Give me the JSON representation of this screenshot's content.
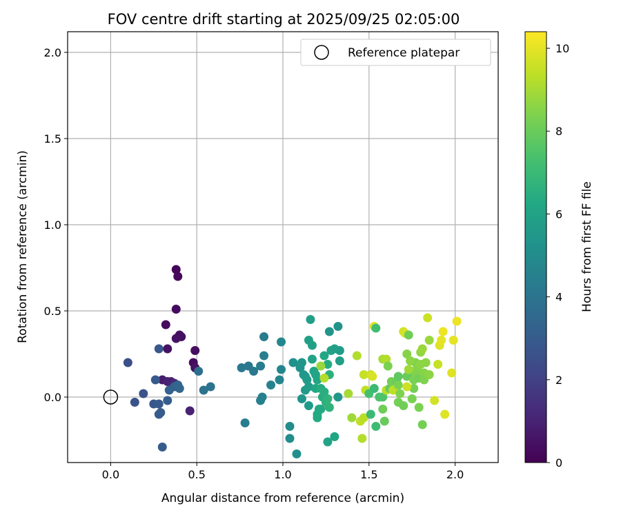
{
  "chart_data": {
    "type": "scatter",
    "title": "FOV centre drift starting at 2025/09/25 02:05:00",
    "xlabel": "Angular distance from reference (arcmin)",
    "ylabel": "Rotation from reference (arcmin)",
    "xlim": [
      -0.25,
      2.25
    ],
    "ylim": [
      -0.38,
      2.12
    ],
    "xticks": [
      0.0,
      0.5,
      1.0,
      1.5,
      2.0
    ],
    "xtick_labels": [
      "0.0",
      "0.5",
      "1.0",
      "1.5",
      "2.0"
    ],
    "yticks": [
      0.0,
      0.5,
      1.0,
      1.5,
      2.0
    ],
    "ytick_labels": [
      "0.0",
      "0.5",
      "1.0",
      "1.5",
      "2.0"
    ],
    "grid": true,
    "legend": {
      "position": "top-right",
      "label": "Reference platepar"
    },
    "reference_point": {
      "x": 0.0,
      "y": 0.0
    },
    "colorbar": {
      "label": "Hours from first FF file",
      "colormap": "viridis",
      "range": [
        0,
        10.4
      ],
      "ticks": [
        0,
        2,
        4,
        6,
        8,
        10
      ],
      "tick_labels": [
        "0",
        "2",
        "4",
        "6",
        "8",
        "10"
      ]
    },
    "points": [
      [
        0.38,
        0.74,
        0.1
      ],
      [
        0.39,
        0.7,
        0.2
      ],
      [
        0.38,
        0.51,
        0.3
      ],
      [
        0.32,
        0.42,
        0.3
      ],
      [
        0.4,
        0.36,
        0.4
      ],
      [
        0.41,
        0.35,
        0.4
      ],
      [
        0.38,
        0.34,
        0.5
      ],
      [
        0.33,
        0.28,
        0.5
      ],
      [
        0.49,
        0.27,
        0.4
      ],
      [
        0.48,
        0.2,
        0.3
      ],
      [
        0.49,
        0.17,
        0.5
      ],
      [
        0.3,
        0.1,
        0.8
      ],
      [
        0.33,
        0.09,
        1.0
      ],
      [
        0.35,
        0.09,
        1.0
      ],
      [
        0.37,
        0.08,
        1.2
      ],
      [
        0.46,
        -0.08,
        1.0
      ],
      [
        0.28,
        0.28,
        2.8
      ],
      [
        0.1,
        0.2,
        2.5
      ],
      [
        0.26,
        0.1,
        2.9
      ],
      [
        0.14,
        -0.03,
        2.7
      ],
      [
        0.19,
        0.02,
        2.6
      ],
      [
        0.25,
        -0.04,
        2.8
      ],
      [
        0.28,
        -0.04,
        2.9
      ],
      [
        0.28,
        -0.1,
        3.0
      ],
      [
        0.29,
        -0.09,
        3.0
      ],
      [
        0.33,
        -0.02,
        3.1
      ],
      [
        0.34,
        0.04,
        3.2
      ],
      [
        0.37,
        0.06,
        3.3
      ],
      [
        0.39,
        0.07,
        3.4
      ],
      [
        0.4,
        0.05,
        3.4
      ],
      [
        0.3,
        -0.29,
        3.0
      ],
      [
        0.51,
        0.15,
        3.8
      ],
      [
        0.54,
        0.04,
        3.9
      ],
      [
        0.58,
        0.06,
        4.0
      ],
      [
        0.76,
        0.17,
        4.1
      ],
      [
        0.8,
        0.18,
        4.1
      ],
      [
        0.83,
        0.15,
        4.2
      ],
      [
        0.87,
        0.18,
        4.3
      ],
      [
        0.89,
        0.35,
        4.3
      ],
      [
        0.89,
        0.24,
        4.4
      ],
      [
        0.78,
        -0.15,
        4.4
      ],
      [
        0.87,
        -0.02,
        4.5
      ],
      [
        0.88,
        0.0,
        4.5
      ],
      [
        0.93,
        0.07,
        4.6
      ],
      [
        0.98,
        0.1,
        4.7
      ],
      [
        0.99,
        0.16,
        4.7
      ],
      [
        0.99,
        0.32,
        4.8
      ],
      [
        1.04,
        -0.17,
        5.0
      ],
      [
        1.04,
        -0.24,
        5.0
      ],
      [
        1.08,
        -0.33,
        5.1
      ],
      [
        1.06,
        0.2,
        5.2
      ],
      [
        1.1,
        0.17,
        5.3
      ],
      [
        1.11,
        0.2,
        5.4
      ],
      [
        1.12,
        0.13,
        5.5
      ],
      [
        1.13,
        0.12,
        5.5
      ],
      [
        1.14,
        0.1,
        5.6
      ],
      [
        1.11,
        -0.01,
        5.4
      ],
      [
        1.13,
        0.04,
        5.6
      ],
      [
        1.15,
        0.06,
        5.7
      ],
      [
        1.15,
        -0.05,
        5.6
      ],
      [
        1.16,
        0.45,
        5.8
      ],
      [
        1.15,
        0.33,
        5.9
      ],
      [
        1.17,
        0.3,
        5.9
      ],
      [
        1.17,
        0.22,
        6.0
      ],
      [
        1.18,
        0.15,
        6.0
      ],
      [
        1.19,
        0.13,
        6.1
      ],
      [
        1.2,
        0.1,
        6.1
      ],
      [
        1.19,
        0.05,
        6.2
      ],
      [
        1.21,
        -0.07,
        6.2
      ],
      [
        1.2,
        -0.1,
        6.3
      ],
      [
        1.2,
        -0.12,
        6.3
      ],
      [
        1.22,
        -0.07,
        6.3
      ],
      [
        1.22,
        0.05,
        6.4
      ],
      [
        1.23,
        0.0,
        6.4
      ],
      [
        1.24,
        0.03,
        6.5
      ],
      [
        1.24,
        0.24,
        6.2
      ],
      [
        1.26,
        0.19,
        6.4
      ],
      [
        1.27,
        0.38,
        5.4
      ],
      [
        1.28,
        0.27,
        6.0
      ],
      [
        1.32,
        0.41,
        5.3
      ],
      [
        1.33,
        0.27,
        5.7
      ],
      [
        1.33,
        0.21,
        5.8
      ],
      [
        1.3,
        0.28,
        5.9
      ],
      [
        1.27,
        0.13,
        6.6
      ],
      [
        1.3,
        -0.23,
        6.1
      ],
      [
        1.26,
        -0.26,
        6.0
      ],
      [
        1.25,
        -0.03,
        6.6
      ],
      [
        1.27,
        -0.06,
        6.7
      ],
      [
        1.32,
        0.0,
        5.5
      ],
      [
        1.26,
        -0.01,
        6.7
      ],
      [
        1.22,
        0.18,
        8.8
      ],
      [
        1.24,
        0.11,
        9.2
      ],
      [
        1.38,
        0.02,
        9.0
      ],
      [
        1.4,
        -0.12,
        8.9
      ],
      [
        1.43,
        0.24,
        9.2
      ],
      [
        1.45,
        -0.14,
        9.4
      ],
      [
        1.47,
        0.13,
        9.5
      ],
      [
        1.48,
        0.04,
        9.4
      ],
      [
        1.47,
        -0.12,
        9.3
      ],
      [
        1.46,
        -0.24,
        9.2
      ],
      [
        1.51,
        0.13,
        9.6
      ],
      [
        1.52,
        0.12,
        9.8
      ],
      [
        1.53,
        0.41,
        9.9
      ],
      [
        1.54,
        0.4,
        7.2
      ],
      [
        1.5,
        0.02,
        7.3
      ],
      [
        1.51,
        -0.1,
        7.0
      ],
      [
        1.53,
        0.05,
        7.0
      ],
      [
        1.54,
        -0.17,
        7.1
      ],
      [
        1.56,
        0.0,
        7.4
      ],
      [
        1.58,
        0.0,
        7.5
      ],
      [
        1.58,
        0.22,
        9.0
      ],
      [
        1.6,
        0.22,
        9.2
      ],
      [
        1.6,
        0.04,
        9.3
      ],
      [
        1.62,
        0.05,
        8.0
      ],
      [
        1.58,
        -0.07,
        8.1
      ],
      [
        1.59,
        -0.14,
        8.0
      ],
      [
        1.61,
        0.18,
        8.3
      ],
      [
        1.63,
        0.09,
        8.2
      ],
      [
        1.64,
        0.04,
        9.4
      ],
      [
        1.66,
        0.09,
        8.0
      ],
      [
        1.67,
        0.07,
        8.3
      ],
      [
        1.67,
        -0.03,
        8.2
      ],
      [
        1.68,
        0.02,
        8.4
      ],
      [
        1.67,
        0.12,
        7.8
      ],
      [
        1.7,
        0.38,
        9.7
      ],
      [
        1.71,
        0.37,
        9.8
      ],
      [
        1.72,
        0.25,
        8.5
      ],
      [
        1.72,
        0.12,
        8.0
      ],
      [
        1.73,
        0.36,
        8.1
      ],
      [
        1.74,
        0.21,
        8.2
      ],
      [
        1.74,
        0.14,
        8.1
      ],
      [
        1.75,
        0.13,
        7.9
      ],
      [
        1.76,
        0.15,
        8.4
      ],
      [
        1.76,
        0.1,
        8.3
      ],
      [
        1.76,
        0.05,
        8.2
      ],
      [
        1.77,
        0.2,
        8.4
      ],
      [
        1.78,
        0.16,
        8.5
      ],
      [
        1.78,
        0.13,
        8.4
      ],
      [
        1.79,
        0.11,
        8.2
      ],
      [
        1.79,
        -0.06,
        8.3
      ],
      [
        1.8,
        0.19,
        8.6
      ],
      [
        1.8,
        0.26,
        8.7
      ],
      [
        1.81,
        0.28,
        8.8
      ],
      [
        1.81,
        -0.16,
        8.2
      ],
      [
        1.82,
        0.14,
        8.5
      ],
      [
        1.82,
        0.1,
        8.4
      ],
      [
        1.83,
        0.2,
        8.6
      ],
      [
        1.84,
        0.46,
        9.6
      ],
      [
        1.85,
        0.33,
        8.8
      ],
      [
        1.85,
        0.13,
        8.6
      ],
      [
        1.88,
        -0.02,
        9.7
      ],
      [
        1.9,
        0.19,
        9.5
      ],
      [
        1.91,
        0.3,
        9.9
      ],
      [
        1.92,
        0.33,
        10.0
      ],
      [
        1.93,
        0.38,
        10.1
      ],
      [
        1.94,
        -0.1,
        9.9
      ],
      [
        1.98,
        0.14,
        9.9
      ],
      [
        1.99,
        0.33,
        10.0
      ],
      [
        2.01,
        0.44,
        10.1
      ],
      [
        1.72,
        0.06,
        9.6
      ],
      [
        1.75,
        -0.01,
        8.3
      ],
      [
        1.7,
        -0.05,
        8.1
      ],
      [
        1.73,
        0.16,
        8.9
      ],
      [
        1.74,
        0.21,
        8.6
      ]
    ]
  }
}
